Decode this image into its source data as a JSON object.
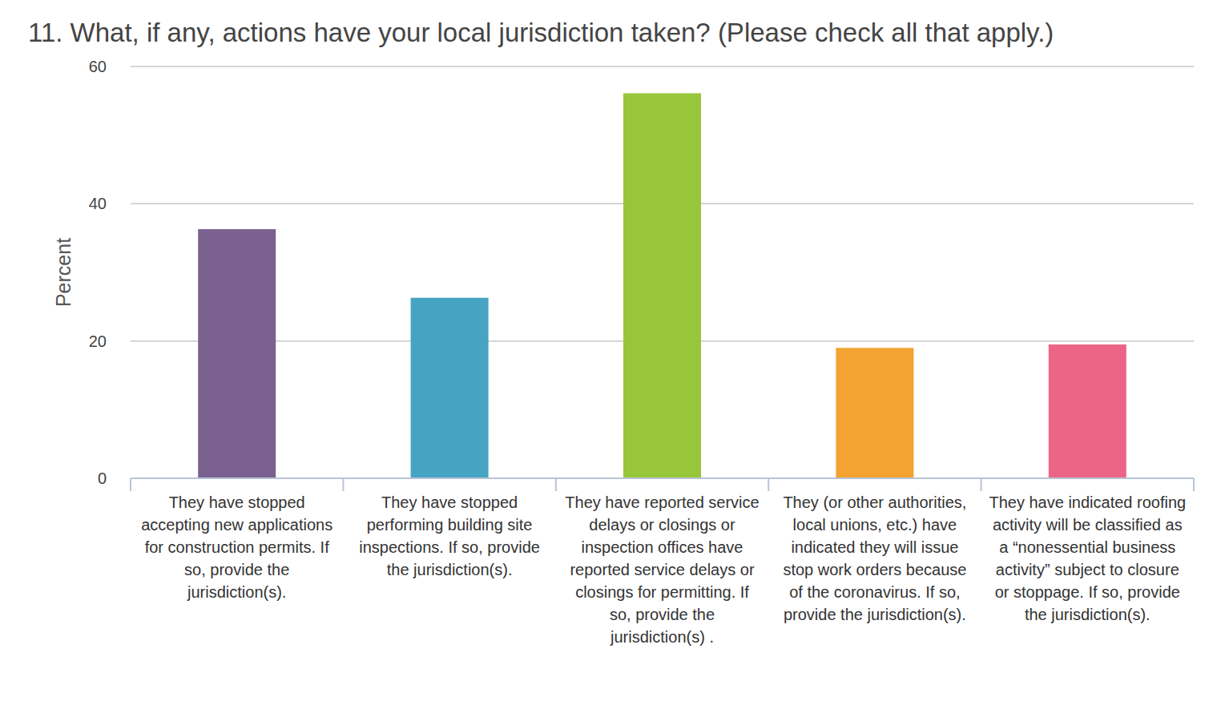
{
  "chart_data": {
    "type": "bar",
    "title": "11. What, if any, actions have your local jurisdiction taken? (Please check all that apply.)",
    "y_label": "Percent",
    "categories": [
      "They have stopped accepting new applications for construction permits. If so, provide the jurisdiction(s).",
      "They have stopped performing building site inspections. If so, provide the jurisdiction(s).",
      "They have reported service delays or closings or inspection offices have reported service delays or closings for permitting. If so, provide the jurisdiction(s) .",
      "They (or other authorities, local unions, etc.) have indicated they will issue stop work orders because of the coronavirus. If so, provide the jurisdiction(s).",
      "They have indicated roofing activity will be classified as a “nonessential business activity” subject to closure or stoppage. If so, provide the jurisdiction(s)."
    ],
    "values": [
      36.3,
      26.3,
      56.1,
      19.0,
      19.5
    ],
    "colors": [
      "#7a6190",
      "#46a4c2",
      "#98c63a",
      "#f2a332",
      "#ec6586"
    ],
    "ylim": [
      0,
      60
    ],
    "yticks": [
      0,
      20,
      40,
      60
    ],
    "grid": true
  }
}
